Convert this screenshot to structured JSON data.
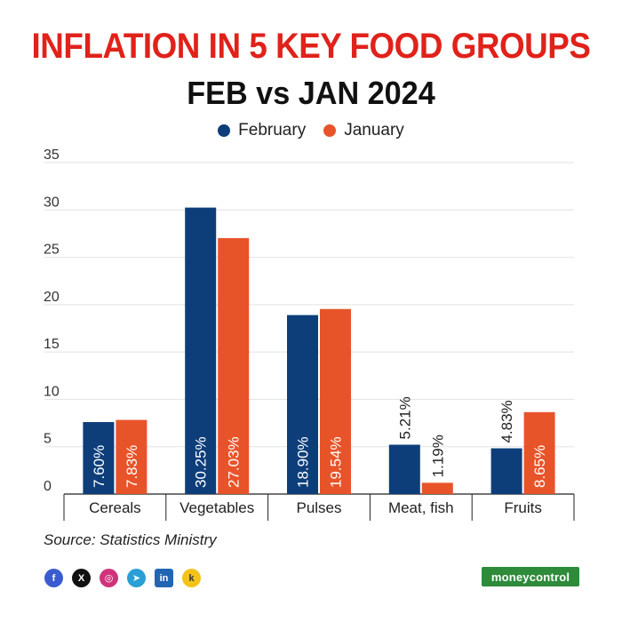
{
  "header": {
    "title": "INFLATION IN 5 KEY FOOD GROUPS",
    "subtitle": "FEB vs JAN 2024"
  },
  "legend": {
    "february": "February",
    "january": "January"
  },
  "colors": {
    "february": "#0d3e7a",
    "january": "#e8542a",
    "title": "#e0221b",
    "brand": "#2e8b3a"
  },
  "chart_data": {
    "type": "bar",
    "title": "INFLATION IN 5 KEY FOOD GROUPS",
    "subtitle": "FEB vs JAN 2024",
    "categories": [
      "Cereals",
      "Vegetables",
      "Pulses",
      "Meat, fish",
      "Fruits"
    ],
    "series": [
      {
        "name": "February",
        "values": [
          7.6,
          30.25,
          18.9,
          5.21,
          4.83
        ],
        "labels": [
          "7.60%",
          "30.25%",
          "18.90%",
          "5.21%",
          "4.83%"
        ]
      },
      {
        "name": "January",
        "values": [
          7.83,
          27.03,
          19.54,
          1.19,
          8.65
        ],
        "labels": [
          "7.83%",
          "27.03%",
          "19.54%",
          "1.19%",
          "8.65%"
        ]
      }
    ],
    "yticks": [
      "35",
      "30",
      "25",
      "20",
      "15",
      "10",
      "5",
      "0"
    ],
    "ylim": [
      0,
      35
    ],
    "xlabel": "",
    "ylabel": "",
    "grid": true,
    "legend_position": "top-center"
  },
  "footer": {
    "source": "Source: Statistics Ministry",
    "brand": "moneycontrol",
    "social": [
      "facebook-icon",
      "x-icon",
      "instagram-icon",
      "telegram-icon",
      "linkedin-icon",
      "koo-icon"
    ]
  }
}
